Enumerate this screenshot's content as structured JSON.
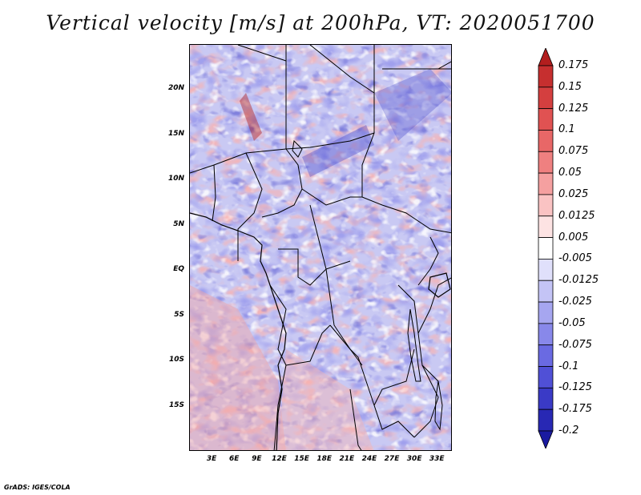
{
  "title": "Vertical velocity [m/s] at 200hPa, VT: 2020051700",
  "credit": "GrADS: IGES/COLA",
  "map": {
    "lon_range": [
      0,
      35
    ],
    "lat_range": [
      -20,
      25
    ],
    "lat_labels": [
      "20N",
      "15N",
      "10N",
      "5N",
      "EQ",
      "5S",
      "10S",
      "15S"
    ],
    "lat_values": [
      20,
      15,
      10,
      5,
      0,
      -5,
      -10,
      -15
    ],
    "lon_labels": [
      "3E",
      "6E",
      "9E",
      "12E",
      "15E",
      "18E",
      "21E",
      "24E",
      "27E",
      "30E",
      "33E"
    ],
    "lon_values": [
      3,
      6,
      9,
      12,
      15,
      18,
      21,
      24,
      27,
      30,
      33
    ]
  },
  "colorbar": {
    "labels": [
      "0.175",
      "0.15",
      "0.125",
      "0.1",
      "0.075",
      "0.05",
      "0.025",
      "0.0125",
      "0.005",
      "-0.005",
      "-0.0125",
      "-0.025",
      "-0.05",
      "-0.075",
      "-0.1",
      "-0.125",
      "-0.175",
      "-0.2"
    ],
    "colors": [
      "#b21e1e",
      "#c62f2f",
      "#d43f3f",
      "#e05252",
      "#e86767",
      "#ef8080",
      "#f5a0a0",
      "#fac3c3",
      "#fde3e3",
      "#ffffff",
      "#e0e0fb",
      "#c4c4f6",
      "#a6a6f0",
      "#8888ea",
      "#6a6ae2",
      "#5050d6",
      "#3a3ac6",
      "#2828b4",
      "#1a1aa0"
    ]
  }
}
